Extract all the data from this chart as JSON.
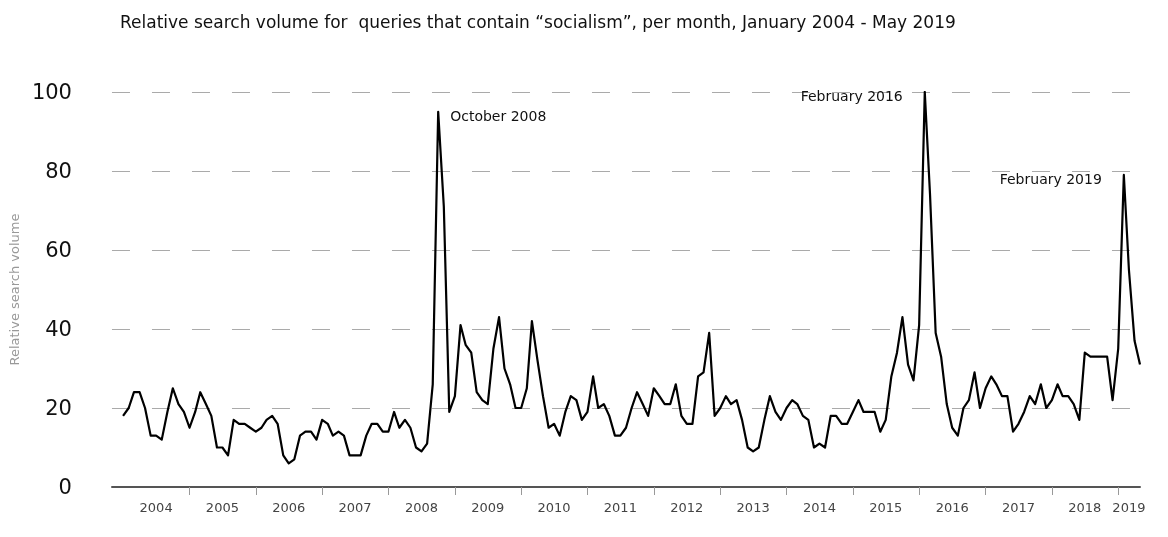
{
  "chart_data": {
    "type": "line",
    "title": "Relative search volume for  queries that contain “socialism”, per month, January 2004 - May 2019",
    "ylabel": "Relative search volume",
    "x": [
      "2004-01",
      "2004-02",
      "2004-03",
      "2004-04",
      "2004-05",
      "2004-06",
      "2004-07",
      "2004-08",
      "2004-09",
      "2004-10",
      "2004-11",
      "2004-12",
      "2005-01",
      "2005-02",
      "2005-03",
      "2005-04",
      "2005-05",
      "2005-06",
      "2005-07",
      "2005-08",
      "2005-09",
      "2005-10",
      "2005-11",
      "2005-12",
      "2006-01",
      "2006-02",
      "2006-03",
      "2006-04",
      "2006-05",
      "2006-06",
      "2006-07",
      "2006-08",
      "2006-09",
      "2006-10",
      "2006-11",
      "2006-12",
      "2007-01",
      "2007-02",
      "2007-03",
      "2007-04",
      "2007-05",
      "2007-06",
      "2007-07",
      "2007-08",
      "2007-09",
      "2007-10",
      "2007-11",
      "2007-12",
      "2008-01",
      "2008-02",
      "2008-03",
      "2008-04",
      "2008-05",
      "2008-06",
      "2008-07",
      "2008-08",
      "2008-09",
      "2008-10",
      "2008-11",
      "2008-12",
      "2009-01",
      "2009-02",
      "2009-03",
      "2009-04",
      "2009-05",
      "2009-06",
      "2009-07",
      "2009-08",
      "2009-09",
      "2009-10",
      "2009-11",
      "2009-12",
      "2010-01",
      "2010-02",
      "2010-03",
      "2010-04",
      "2010-05",
      "2010-06",
      "2010-07",
      "2010-08",
      "2010-09",
      "2010-10",
      "2010-11",
      "2010-12",
      "2011-01",
      "2011-02",
      "2011-03",
      "2011-04",
      "2011-05",
      "2011-06",
      "2011-07",
      "2011-08",
      "2011-09",
      "2011-10",
      "2011-11",
      "2011-12",
      "2012-01",
      "2012-02",
      "2012-03",
      "2012-04",
      "2012-05",
      "2012-06",
      "2012-07",
      "2012-08",
      "2012-09",
      "2012-10",
      "2012-11",
      "2012-12",
      "2013-01",
      "2013-02",
      "2013-03",
      "2013-04",
      "2013-05",
      "2013-06",
      "2013-07",
      "2013-08",
      "2013-09",
      "2013-10",
      "2013-11",
      "2013-12",
      "2014-01",
      "2014-02",
      "2014-03",
      "2014-04",
      "2014-05",
      "2014-06",
      "2014-07",
      "2014-08",
      "2014-09",
      "2014-10",
      "2014-11",
      "2014-12",
      "2015-01",
      "2015-02",
      "2015-03",
      "2015-04",
      "2015-05",
      "2015-06",
      "2015-07",
      "2015-08",
      "2015-09",
      "2015-10",
      "2015-11",
      "2015-12",
      "2016-01",
      "2016-02",
      "2016-03",
      "2016-04",
      "2016-05",
      "2016-06",
      "2016-07",
      "2016-08",
      "2016-09",
      "2016-10",
      "2016-11",
      "2016-12",
      "2017-01",
      "2017-02",
      "2017-03",
      "2017-04",
      "2017-05",
      "2017-06",
      "2017-07",
      "2017-08",
      "2017-09",
      "2017-10",
      "2017-11",
      "2017-12",
      "2018-01",
      "2018-02",
      "2018-03",
      "2018-04",
      "2018-05",
      "2018-06",
      "2018-07",
      "2018-08",
      "2018-09",
      "2018-10",
      "2018-11",
      "2018-12",
      "2019-01",
      "2019-02",
      "2019-03",
      "2019-04",
      "2019-05"
    ],
    "series": [
      {
        "color": "#000000",
        "values": [
          18,
          20,
          24,
          24,
          20,
          13,
          13,
          12,
          19,
          25,
          21,
          19,
          15,
          19,
          24,
          21,
          18,
          10,
          10,
          8,
          17,
          16,
          16,
          15,
          14,
          15,
          17,
          18,
          16,
          8,
          6,
          7,
          13,
          14,
          14,
          12,
          17,
          16,
          13,
          14,
          13,
          8,
          8,
          8,
          13,
          16,
          16,
          14,
          14,
          19,
          15,
          17,
          15,
          10,
          9,
          11,
          26,
          95,
          71,
          19,
          23,
          41,
          36,
          34,
          24,
          22,
          21,
          35,
          43,
          30,
          26,
          20,
          20,
          25,
          42,
          32,
          23,
          15,
          16,
          13,
          19,
          23,
          22,
          17,
          19,
          28,
          20,
          21,
          18,
          13,
          13,
          15,
          20,
          24,
          21,
          18,
          25,
          23,
          21,
          21,
          26,
          18,
          16,
          16,
          28,
          29,
          39,
          18,
          20,
          23,
          21,
          22,
          17,
          10,
          9,
          10,
          17,
          23,
          19,
          17,
          20,
          22,
          21,
          18,
          17,
          10,
          11,
          10,
          18,
          18,
          16,
          16,
          19,
          22,
          19,
          19,
          19,
          14,
          17,
          28,
          34,
          43,
          31,
          27,
          41,
          100,
          74,
          39,
          33,
          21,
          15,
          13,
          20,
          22,
          29,
          20,
          25,
          28,
          26,
          23,
          23,
          14,
          16,
          19,
          23,
          21,
          26,
          20,
          22,
          26,
          23,
          23,
          21,
          17,
          34,
          33,
          33,
          33,
          33,
          22,
          35,
          79,
          55,
          37,
          31
        ]
      }
    ],
    "xlim": [
      "2003-11",
      "2019-05"
    ],
    "xticks": [
      {
        "value": "2004-07",
        "label": "2004"
      },
      {
        "value": "2005-01",
        "label": null
      },
      {
        "value": "2005-07",
        "label": "2005"
      },
      {
        "value": "2006-01",
        "label": null
      },
      {
        "value": "2006-07",
        "label": "2006"
      },
      {
        "value": "2007-01",
        "label": null
      },
      {
        "value": "2007-07",
        "label": "2007"
      },
      {
        "value": "2008-01",
        "label": null
      },
      {
        "value": "2008-07",
        "label": "2008"
      },
      {
        "value": "2009-01",
        "label": null
      },
      {
        "value": "2009-07",
        "label": "2009"
      },
      {
        "value": "2010-01",
        "label": null
      },
      {
        "value": "2010-07",
        "label": "2010"
      },
      {
        "value": "2011-01",
        "label": null
      },
      {
        "value": "2011-07",
        "label": "2011"
      },
      {
        "value": "2012-01",
        "label": null
      },
      {
        "value": "2012-07",
        "label": "2012"
      },
      {
        "value": "2013-01",
        "label": null
      },
      {
        "value": "2013-07",
        "label": "2013"
      },
      {
        "value": "2014-01",
        "label": null
      },
      {
        "value": "2014-07",
        "label": "2014"
      },
      {
        "value": "2015-01",
        "label": null
      },
      {
        "value": "2015-07",
        "label": "2015"
      },
      {
        "value": "2016-01",
        "label": null
      },
      {
        "value": "2016-07",
        "label": "2016"
      },
      {
        "value": "2017-01",
        "label": null
      },
      {
        "value": "2017-07",
        "label": "2017"
      },
      {
        "value": "2018-01",
        "label": null
      },
      {
        "value": "2018-07",
        "label": "2018"
      },
      {
        "value": "2019-01",
        "label": null
      },
      {
        "value": "2019-03",
        "label": "2019"
      }
    ],
    "ylim": [
      0,
      100
    ],
    "yticks": [
      0,
      20,
      40,
      60,
      80,
      100
    ],
    "grid": "y",
    "line_style": "solid",
    "marker": "none",
    "annotations": [
      {
        "text": "October 2008",
        "x": "2008-10",
        "y": 95
      },
      {
        "text": "February 2016",
        "x": "2016-02",
        "y": 100
      },
      {
        "text": "February 2019",
        "x": "2019-02",
        "y": 79
      }
    ]
  }
}
